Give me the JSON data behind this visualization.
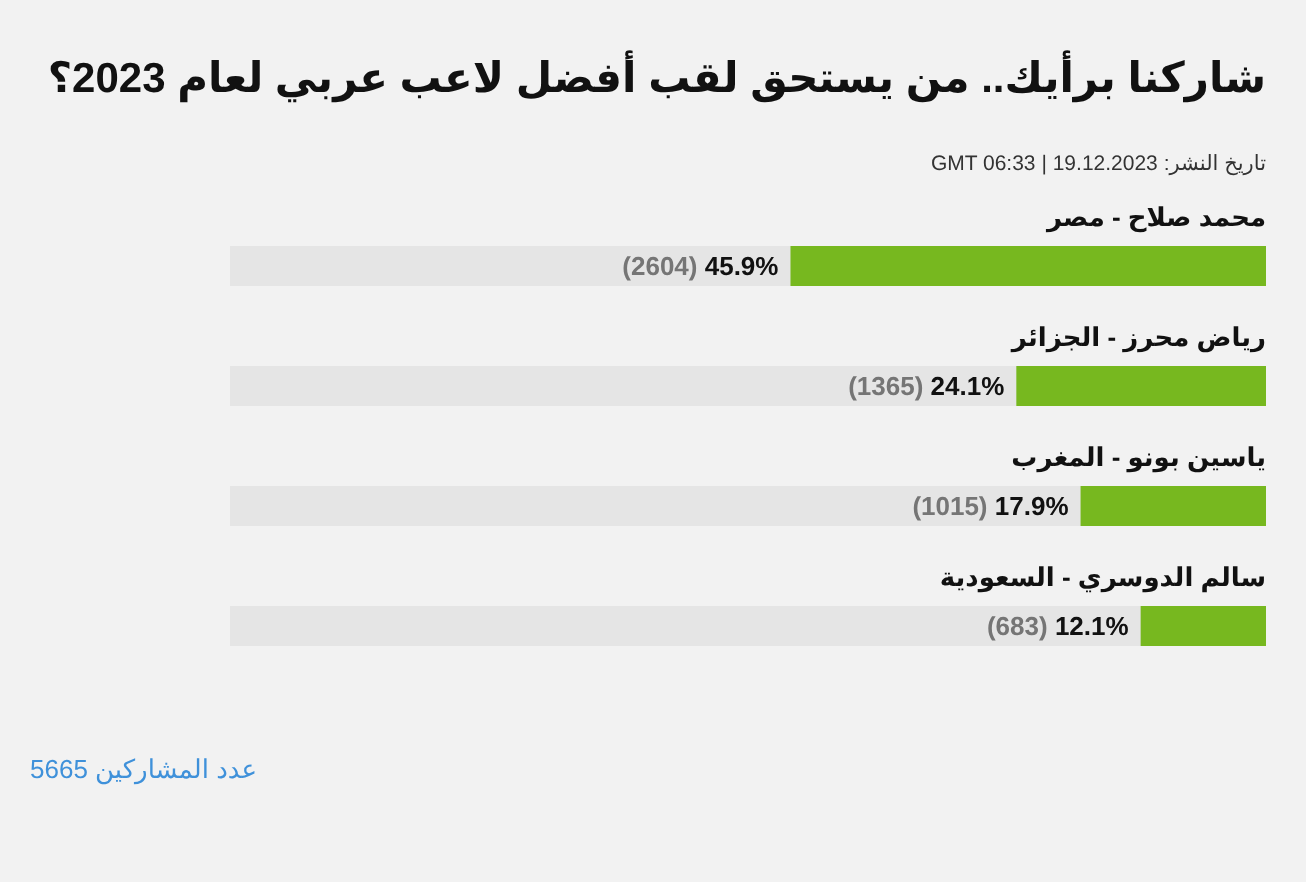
{
  "chart_data": {
    "type": "bar",
    "orientation": "horizontal",
    "title": "شاركنا برأيك.. من يستحق لقب أفضل لاعب عربي لعام 2023؟",
    "subtitle": "تاريخ النشر: 19.12.2023 | GMT 06:33",
    "categories": [
      "محمد صلاح - مصر",
      "رياض محرز - الجزائر",
      "ياسين بونو - المغرب",
      "سالم الدوسري - السعودية"
    ],
    "values": [
      45.9,
      24.1,
      17.9,
      12.1
    ],
    "color": "#77b81f",
    "value_labels": [
      "(2604) 45.9%",
      "(1365) 24.1%",
      "(1015) 17.9%",
      "(683) 12.1%"
    ],
    "xlim": [
      100,
      0
    ],
    "tick_labels": "y",
    "annotations": [
      "عدد المشاركين 5665"
    ]
  }
}
